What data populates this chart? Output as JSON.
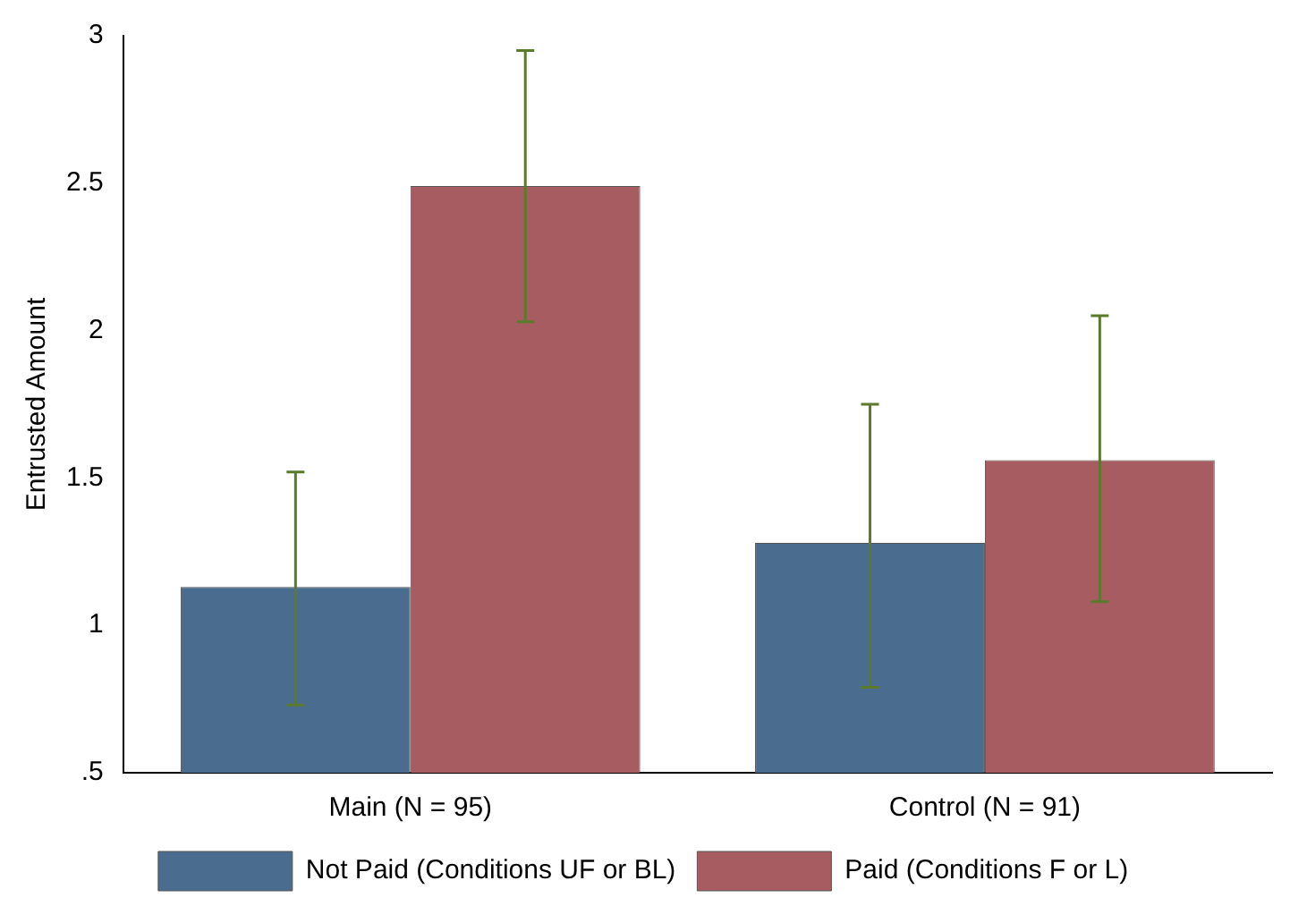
{
  "chart_data": {
    "type": "bar",
    "ylabel": "Entrusted Amount",
    "categories": [
      "Main (N = 95)",
      "Control (N = 91)"
    ],
    "series": [
      {
        "name": "Not Paid (Conditions UF or BL)",
        "color": "#4a6d8f",
        "values": [
          1.13,
          1.28
        ],
        "errors": [
          [
            0.73,
            1.52
          ],
          [
            0.79,
            1.75
          ]
        ]
      },
      {
        "name": "Paid (Conditions F or L)",
        "color": "#a65c60",
        "values": [
          2.49,
          1.56
        ],
        "errors": [
          [
            2.03,
            2.95
          ],
          [
            1.08,
            2.05
          ]
        ]
      }
    ],
    "ylim": [
      0.5,
      3
    ],
    "yticks": [
      {
        "value": 0.5,
        "label": ".5"
      },
      1,
      1.5,
      2,
      2.5,
      3
    ],
    "grid": false,
    "legend": "bottom"
  }
}
